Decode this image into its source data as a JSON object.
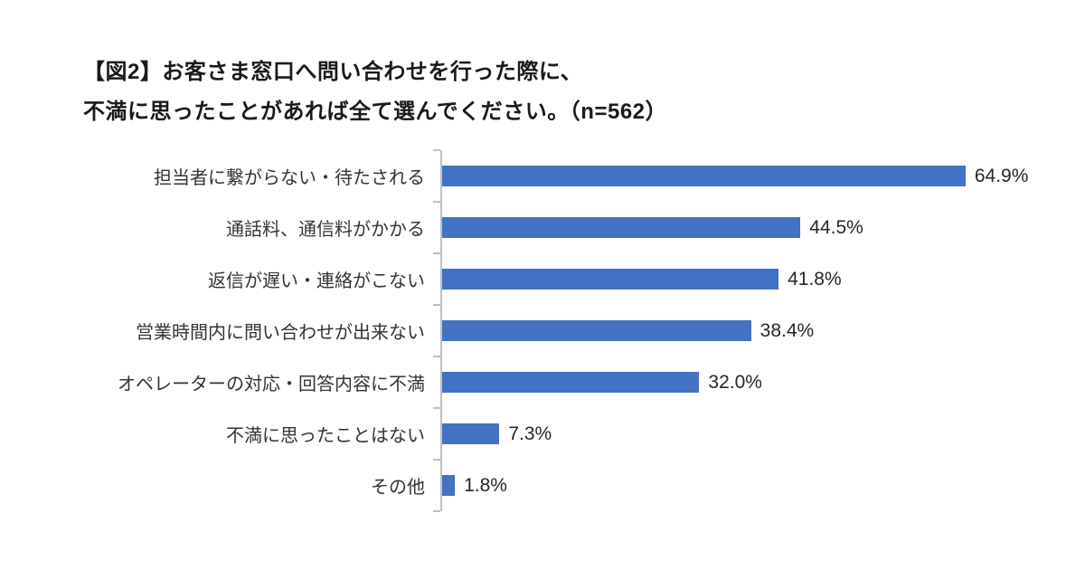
{
  "chart_data": {
    "type": "bar",
    "orientation": "horizontal",
    "title_line1": "【図2】お客さま窓口へ問い合わせを行った際に、",
    "title_line2": "不満に思ったことがあれば全て選んでください。（n=562）",
    "sample_size": "n=562",
    "categories": [
      "担当者に繋がらない・待たされる",
      "通話料、通信料がかかる",
      "返信が遅い・連絡がこない",
      "営業時間内に問い合わせが出来ない",
      "オペレーターの対応・回答内容に不満",
      "不満に思ったことはない",
      "その他"
    ],
    "values": [
      64.9,
      44.5,
      41.8,
      38.4,
      32.0,
      7.3,
      1.8
    ],
    "value_labels": [
      "64.9%",
      "44.5%",
      "41.8%",
      "38.4%",
      "32.0%",
      "7.3%",
      "1.8%"
    ],
    "xlabel": "",
    "ylabel": "",
    "xlim": [
      0,
      70
    ],
    "grid": false,
    "legend": false,
    "bar_color": "#4472C4",
    "axis_color": "#BFBFBF"
  }
}
